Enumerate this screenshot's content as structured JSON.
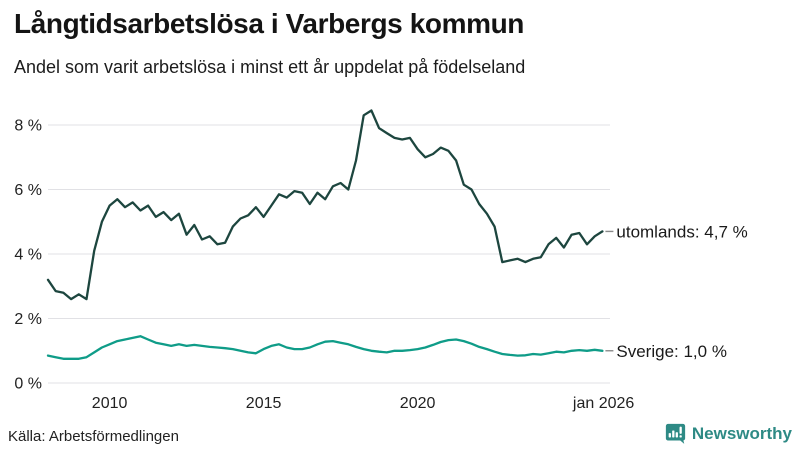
{
  "header": {
    "title": "Långtidsarbetslösa i Varbergs kommun",
    "subtitle": "Andel som varit arbetslösa i minst ett år uppdelat på födelseland"
  },
  "footer": {
    "source": "Källa: Arbetsförmedlingen",
    "brand": "Newsworthy",
    "brand_color": "#2e8a85"
  },
  "chart_data": {
    "type": "line",
    "title": "Långtidsarbetslösa i Varbergs kommun",
    "subtitle": "Andel som varit arbetslösa i minst ett år uppdelat på födelseland",
    "xlabel": "",
    "ylabel": "",
    "x_unit": "year",
    "x_start": 2008.0,
    "x_step": 0.25,
    "xlim": [
      2008.0,
      2026.3
    ],
    "ylim": [
      0,
      8.8
    ],
    "grid": true,
    "legend_position": "right-end-labels",
    "grid_color": "#e1e1e5",
    "yticks": [
      {
        "value": 0,
        "label": "0 %"
      },
      {
        "value": 2,
        "label": "2 %"
      },
      {
        "value": 4,
        "label": "4 %"
      },
      {
        "value": 6,
        "label": "6 %"
      },
      {
        "value": 8,
        "label": "8 %"
      }
    ],
    "xticks": [
      {
        "value": 2010,
        "label": "2010"
      },
      {
        "value": 2015,
        "label": "2015"
      },
      {
        "value": 2020,
        "label": "2020"
      },
      {
        "value": 2026.04,
        "label": "jan 2026"
      }
    ],
    "series": [
      {
        "name": "utomlands",
        "end_label": "utomlands: 4,7 %",
        "last_value_text": "4,7 %",
        "color": "#1d463f",
        "values": [
          3.2,
          2.85,
          2.8,
          2.6,
          2.75,
          2.6,
          4.1,
          5.0,
          5.5,
          5.7,
          5.45,
          5.6,
          5.35,
          5.5,
          5.15,
          5.3,
          5.05,
          5.25,
          4.6,
          4.9,
          4.45,
          4.55,
          4.3,
          4.35,
          4.85,
          5.1,
          5.2,
          5.45,
          5.15,
          5.5,
          5.85,
          5.75,
          5.95,
          5.9,
          5.55,
          5.9,
          5.7,
          6.1,
          6.2,
          6.0,
          6.9,
          8.3,
          8.45,
          7.9,
          7.75,
          7.6,
          7.55,
          7.6,
          7.25,
          7.0,
          7.1,
          7.3,
          7.2,
          6.9,
          6.15,
          6.0,
          5.55,
          5.25,
          4.85,
          3.75,
          3.8,
          3.85,
          3.75,
          3.85,
          3.9,
          4.3,
          4.5,
          4.2,
          4.6,
          4.65,
          4.3,
          4.55,
          4.7
        ]
      },
      {
        "name": "Sverige",
        "end_label": "Sverige: 1,0 %",
        "last_value_text": "1,0 %",
        "color": "#0f9c88",
        "values": [
          0.85,
          0.8,
          0.75,
          0.75,
          0.75,
          0.8,
          0.95,
          1.1,
          1.2,
          1.3,
          1.35,
          1.4,
          1.45,
          1.35,
          1.25,
          1.2,
          1.15,
          1.2,
          1.15,
          1.18,
          1.15,
          1.12,
          1.1,
          1.08,
          1.05,
          1.0,
          0.95,
          0.92,
          1.05,
          1.15,
          1.2,
          1.1,
          1.05,
          1.05,
          1.1,
          1.2,
          1.28,
          1.3,
          1.25,
          1.2,
          1.12,
          1.05,
          1.0,
          0.97,
          0.95,
          1.0,
          1.0,
          1.02,
          1.05,
          1.1,
          1.18,
          1.27,
          1.33,
          1.35,
          1.3,
          1.22,
          1.12,
          1.05,
          0.97,
          0.9,
          0.87,
          0.85,
          0.86,
          0.9,
          0.88,
          0.92,
          0.97,
          0.95,
          1.0,
          1.02,
          1.0,
          1.03,
          1.0
        ]
      }
    ]
  }
}
